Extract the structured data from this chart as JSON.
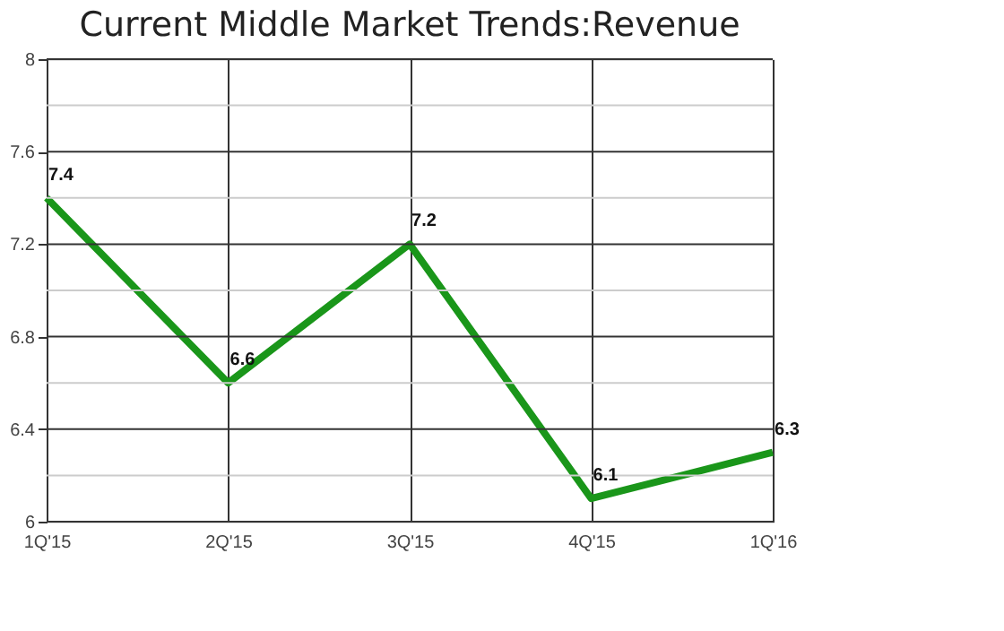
{
  "chart_data": {
    "type": "line",
    "title": "Current Middle Market Trends:Revenue",
    "categories": [
      "1Q'15",
      "2Q'15",
      "3Q'15",
      "4Q'15",
      "1Q'16"
    ],
    "series": [
      {
        "color": "#1a961a",
        "values": [
          7.4,
          6.6,
          7.2,
          6.1,
          6.3
        ]
      }
    ],
    "ylim": [
      6,
      8
    ],
    "yticks": [
      6,
      {
        "value": 6.2,
        "label": null
      },
      6.4,
      {
        "value": 6.6,
        "label": null
      },
      6.8,
      {
        "value": 7.0,
        "label": null
      },
      7.2,
      {
        "value": 7.4,
        "label": null
      },
      7.6,
      {
        "value": 7.8,
        "label": null
      },
      8
    ],
    "grid": true,
    "data_labels": true,
    "marker": "none",
    "line_style": "solid"
  }
}
